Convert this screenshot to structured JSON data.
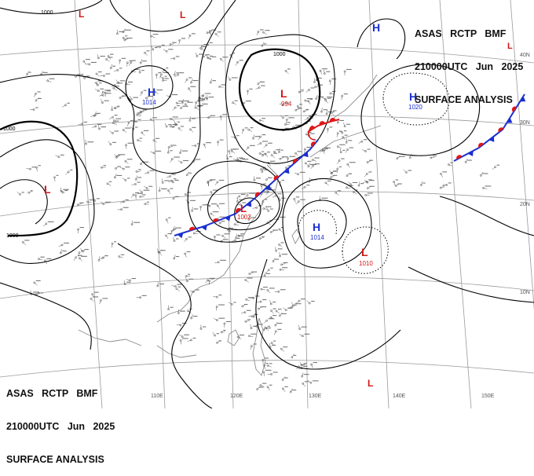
{
  "header_top_right": {
    "line1": "ASAS   RCTP   BMF",
    "line2": "210000UTC   Jun   2025",
    "line3": "SURFACE ANALYSIS"
  },
  "header_bottom_left": {
    "line1": "ASAS   RCTP   BMF",
    "line2": "210000UTC   Jun   2025",
    "line3": "SURFACE ANALYSIS"
  },
  "pressure_centers": [
    {
      "type": "H",
      "value": "1014",
      "color": "#1a2fd0"
    },
    {
      "type": "L",
      "value": "994",
      "color": "#d01818"
    },
    {
      "type": "H",
      "value": "1020",
      "color": "#1a2fd0"
    },
    {
      "type": "L",
      "value": "1002",
      "color": "#d01818"
    },
    {
      "type": "H",
      "value": "1014",
      "color": "#1a2fd0"
    },
    {
      "type": "L",
      "value": "1010",
      "color": "#d01818"
    },
    {
      "type": "L",
      "value": "",
      "color": "#d01818"
    },
    {
      "type": "H",
      "value": "",
      "color": "#1a2fd0"
    },
    {
      "type": "L",
      "value": "",
      "color": "#d01818"
    },
    {
      "type": "L",
      "value": "",
      "color": "#d01818"
    },
    {
      "type": "L",
      "value": "",
      "color": "#d01818"
    },
    {
      "type": "L",
      "value": "",
      "color": "#d01818"
    }
  ],
  "isobar_labels": [
    "1000",
    "1000",
    "1000",
    "1000"
  ],
  "latitude_labels": [
    "40N",
    "30N",
    "20N",
    "10N"
  ],
  "longitude_labels": [
    "110E",
    "120E",
    "130E",
    "140E",
    "150E"
  ],
  "colors": {
    "cold_front": "#1a2fd0",
    "warm_front": "#e01818",
    "isobar": "#000000",
    "graticule": "#9a9a9a",
    "coast": "#8c8c8c"
  }
}
